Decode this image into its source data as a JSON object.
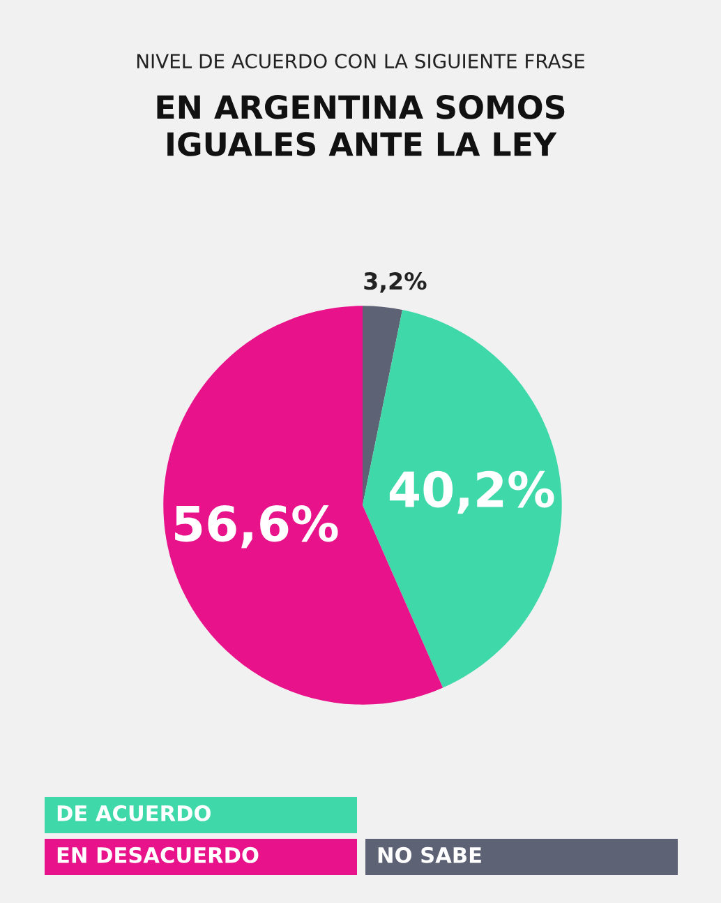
{
  "chart_data": {
    "type": "pie",
    "subtitle": "NIVEL DE ACUERDO CON LA SIGUIENTE FRASE",
    "title": "EN ARGENTINA SOMOS\nIGUALES ANTE LA LEY",
    "categories": [
      "NO SABE",
      "DE ACUERDO",
      "EN DESACUERDO"
    ],
    "values": [
      3.2,
      40.2,
      56.6
    ],
    "colors": [
      "#5e6275",
      "#3fd9a9",
      "#e8128a"
    ],
    "value_labels": [
      "3,2%",
      "40,2%",
      "56,6%"
    ],
    "legend": "bottom"
  }
}
